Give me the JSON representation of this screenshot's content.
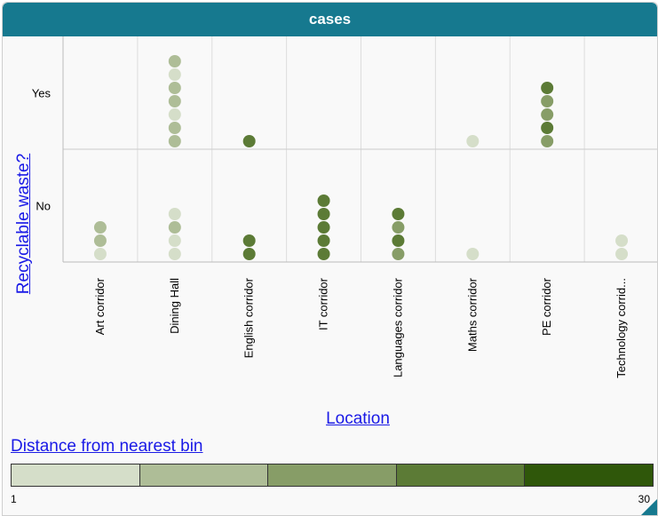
{
  "window": {
    "title": "cases"
  },
  "chart_data": {
    "type": "scatter",
    "xlabel": "Location",
    "ylabel": "Recyclable waste?",
    "categories": [
      "Art corridor",
      "Dining Hall",
      "English corridor",
      "IT corridor",
      "Languages corridor",
      "Maths corridor",
      "PE corridor",
      "Technology corrid..."
    ],
    "y_categories": [
      "No",
      "Yes"
    ],
    "color_legend": {
      "title": "Distance from nearest bin",
      "min": "1",
      "max": "30",
      "colors": [
        "#d5dec9",
        "#aebd97",
        "#879d67",
        "#5c7b36",
        "#2f570a"
      ]
    },
    "points": {
      "Art corridor": {
        "No": [
          1,
          8,
          8
        ],
        "Yes": []
      },
      "Dining Hall": {
        "No": [
          1,
          1,
          8,
          1
        ],
        "Yes": [
          8,
          8,
          1,
          8,
          8,
          1,
          8
        ]
      },
      "English corridor": {
        "No": [
          22,
          22
        ],
        "Yes": [
          22
        ]
      },
      "IT corridor": {
        "No": [
          22,
          22,
          22,
          22,
          22
        ],
        "Yes": []
      },
      "Languages corridor": {
        "No": [
          15,
          22,
          15,
          22
        ],
        "Yes": []
      },
      "Maths corridor": {
        "No": [
          1
        ],
        "Yes": [
          1
        ]
      },
      "PE corridor": {
        "No": [],
        "Yes": [
          15,
          22,
          15,
          15,
          22
        ]
      },
      "Technology corrid...": {
        "No": [
          1,
          1
        ],
        "Yes": []
      }
    },
    "grid": true,
    "legend_position": "bottom"
  }
}
